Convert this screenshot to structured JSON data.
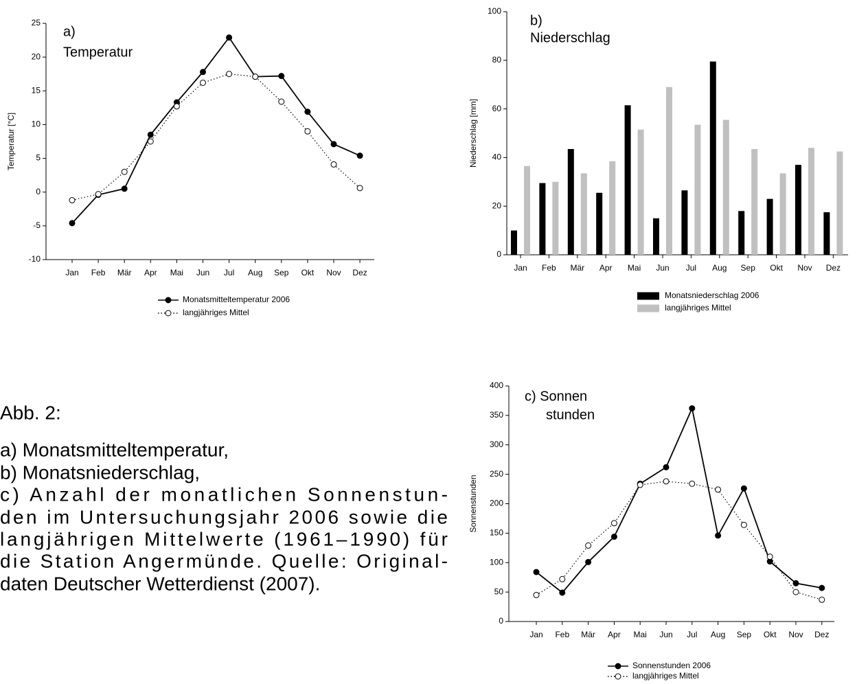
{
  "chart_data": [
    {
      "type": "line",
      "annotation": [
        "a)",
        "Temperatur"
      ],
      "ylabel": "Temperatur [°C]",
      "categories": [
        "Jan",
        "Feb",
        "Mär",
        "Apr",
        "Mai",
        "Jun",
        "Jul",
        "Aug",
        "Sep",
        "Okt",
        "Nov",
        "Dez"
      ],
      "series": [
        {
          "name": "Monatsmitteltemperatur 2006",
          "color": "#000000",
          "marker": "filled",
          "linestyle": "solid",
          "values": [
            -4.6,
            -0.4,
            0.5,
            8.5,
            13.3,
            17.8,
            22.9,
            17.1,
            17.2,
            11.9,
            7.1,
            5.4
          ]
        },
        {
          "name": "langjähriges Mittel",
          "color": "#000000",
          "marker": "open",
          "linestyle": "dotted",
          "values": [
            -1.2,
            -0.3,
            3.0,
            7.5,
            12.7,
            16.2,
            17.5,
            17.1,
            13.4,
            9.0,
            4.1,
            0.6
          ]
        }
      ],
      "ylim": [
        -10,
        25
      ],
      "yticks": [
        -10,
        -5,
        0,
        5,
        10,
        15,
        20,
        25
      ]
    },
    {
      "type": "bar",
      "annotation": [
        "b)",
        "Niederschlag"
      ],
      "ylabel": "Niederschlag [mm]",
      "categories": [
        "Jan",
        "Feb",
        "Mär",
        "Apr",
        "Mai",
        "Jun",
        "Jul",
        "Aug",
        "Sep",
        "Okt",
        "Nov",
        "Dez"
      ],
      "series": [
        {
          "name": "Monatsniederschlag 2006",
          "color": "#000000",
          "values": [
            10,
            29.5,
            43.5,
            25.5,
            61.5,
            15,
            26.5,
            79.5,
            18,
            23,
            37,
            17.5
          ]
        },
        {
          "name": "langjähriges Mittel",
          "color": "#c0c0c0",
          "values": [
            36.5,
            30,
            33.5,
            38.5,
            51.5,
            69,
            53.5,
            55.5,
            43.5,
            33.5,
            44,
            42.5
          ]
        }
      ],
      "ylim": [
        0,
        100
      ],
      "yticks": [
        0,
        20,
        40,
        60,
        80,
        100
      ]
    },
    {
      "type": "line",
      "annotation": [
        "c) Sonnen",
        "stunden"
      ],
      "ylabel": "Sonnenstunden",
      "categories": [
        "Jan",
        "Feb",
        "Mär",
        "Apr",
        "Mai",
        "Jun",
        "Jul",
        "Aug",
        "Sep",
        "Okt",
        "Nov",
        "Dez"
      ],
      "series": [
        {
          "name": "Sonnenstunden 2006",
          "color": "#000000",
          "marker": "filled",
          "linestyle": "solid",
          "values": [
            84,
            49,
            101,
            144,
            234,
            262,
            362,
            146,
            226,
            102,
            65,
            57
          ]
        },
        {
          "name": "langjähriges Mittel",
          "color": "#000000",
          "marker": "open",
          "linestyle": "dotted",
          "values": [
            45,
            72,
            129,
            167,
            232,
            238,
            234,
            224,
            164,
            110,
            50,
            37
          ]
        }
      ],
      "ylim": [
        0,
        400
      ],
      "yticks": [
        0,
        50,
        100,
        150,
        200,
        250,
        300,
        350,
        400
      ]
    }
  ],
  "caption": {
    "heading": "Abb. 2:",
    "lines": [
      "a) Monatsmitteltemperatur,",
      "b) Monatsniederschlag,",
      "c) Anzahl der monatlichen Sonnenstun-",
      "den im Untersuchungsjahr 2006 sowie die",
      "langjährigen Mittelwerte (1961–1990) für",
      "die Station Angermünde. Quelle: Original-",
      "daten Deutscher Wetterdienst (2007)."
    ]
  }
}
